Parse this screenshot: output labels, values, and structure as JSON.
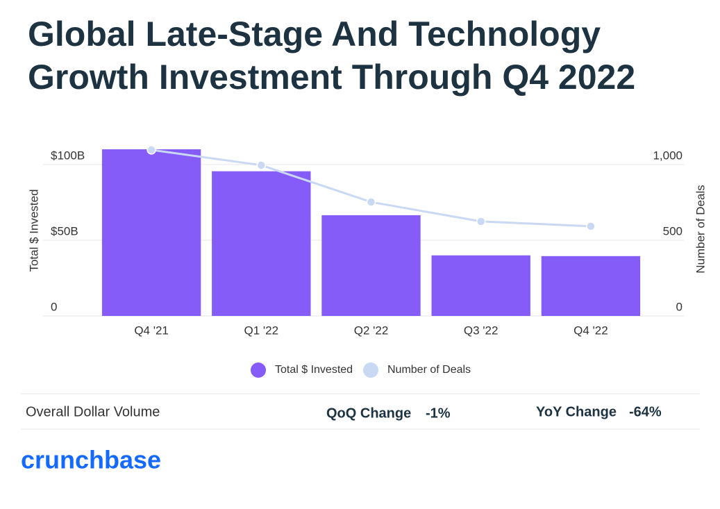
{
  "chart_data": {
    "type": "bar",
    "title": "Global Late-Stage And Technology Growth Investment Through Q4 2022",
    "categories": [
      "Q4 '21",
      "Q1 '22",
      "Q2 '22",
      "Q3 '22",
      "Q4 '22"
    ],
    "series": [
      {
        "name": "Total $ Invested",
        "color": "#855cf8",
        "type": "bar",
        "values": [
          110,
          95.5,
          66.5,
          40,
          39.5
        ]
      },
      {
        "name": "Number of Deals",
        "color": "#c9d8f3",
        "type": "line",
        "axis": "y2",
        "values": [
          1096,
          995,
          752,
          624,
          592
        ]
      }
    ],
    "y_label": "Total $ Invested",
    "y2_label": "Number of Deals",
    "ylim": [
      0,
      110
    ],
    "yticks": [
      0,
      {
        "value": 50,
        "label": "$50B"
      },
      {
        "value": 100,
        "label": "$100B"
      }
    ],
    "y2lim": [
      0,
      1100
    ],
    "y2ticks": [
      0,
      500,
      {
        "value": 1000,
        "label": "1,000"
      }
    ],
    "grid": true,
    "legend": "bottom"
  },
  "summary": {
    "label": "Overall Dollar Volume",
    "qoq_label": "QoQ Change",
    "qoq_value": "-1%",
    "yoy_label": "YoY Change",
    "yoy_value": "-64%"
  },
  "brand": "crunchbase"
}
